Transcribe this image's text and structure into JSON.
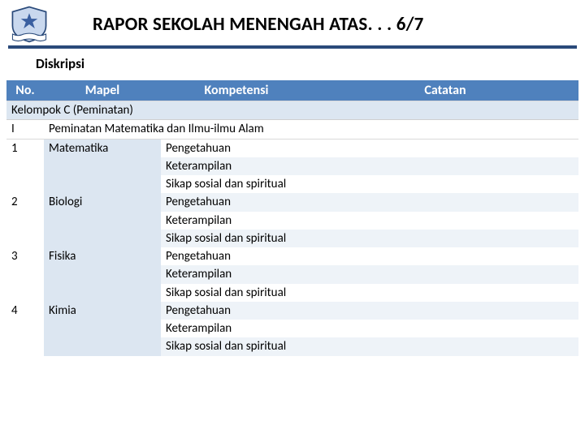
{
  "header": {
    "title": "RAPOR SEKOLAH MENENGAH ATAS. . . 6/7",
    "subtitle": "Diskripsi"
  },
  "columns": {
    "no": "No.",
    "mapel": "Mapel",
    "kompetensi": "Kompetensi",
    "catatan": "Catatan"
  },
  "group": {
    "label": "Kelompok C (Peminatan)"
  },
  "section": {
    "no": "I",
    "label": "Peminatan Matematika dan Ilmu-ilmu Alam"
  },
  "subjects": [
    {
      "no": "1",
      "mapel": "Matematika",
      "rows": [
        "Pengetahuan",
        "Keterampilan",
        "Sikap sosial dan spiritual"
      ]
    },
    {
      "no": "2",
      "mapel": "Biologi",
      "rows": [
        "Pengetahuan",
        "Keterampilan",
        "Sikap sosial dan spiritual"
      ]
    },
    {
      "no": "3",
      "mapel": "Fisika",
      "rows": [
        "Pengetahuan",
        "Keterampilan",
        "Sikap sosial dan spiritual"
      ]
    },
    {
      "no": "4",
      "mapel": "Kimia",
      "rows": [
        "Pengetahuan",
        "Keterampilan",
        "Sikap sosial dan spiritual"
      ]
    }
  ],
  "colors": {
    "header_bg": "#4f81bd",
    "header_text": "#ffffff",
    "band_light": "#ffffff",
    "band_alt": "#eef3f8",
    "mapel_bg": "#dce6f1",
    "group_bg": "#dce6f1",
    "rule": "#2a4a7a"
  },
  "logo": {
    "shield_fill": "#c9d8ee",
    "shield_stroke": "#2a4a7a",
    "star_fill": "#3a5fa0",
    "banner_fill": "#ffffff",
    "banner_stroke": "#2a4a7a"
  }
}
